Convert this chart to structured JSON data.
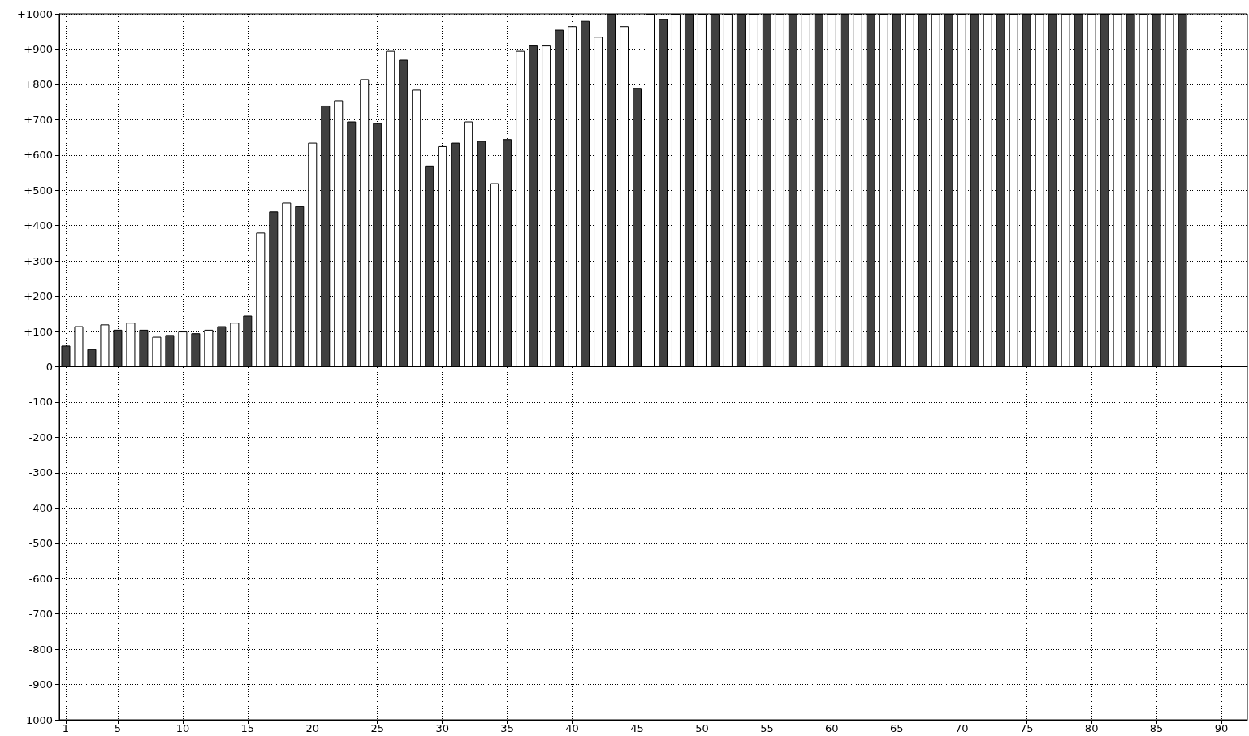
{
  "chart_data": {
    "type": "bar",
    "x": [
      1,
      2,
      3,
      4,
      5,
      6,
      7,
      8,
      9,
      10,
      11,
      12,
      13,
      14,
      15,
      16,
      17,
      18,
      19,
      20,
      21,
      22,
      23,
      24,
      25,
      26,
      27,
      28,
      29,
      30,
      31,
      32,
      33,
      34,
      35,
      36,
      37,
      38,
      39,
      40,
      41,
      42,
      43,
      44,
      45,
      46,
      47,
      48,
      49,
      50,
      51,
      52,
      53,
      54,
      55,
      56,
      57,
      58,
      59,
      60,
      61,
      62,
      63,
      64,
      65,
      66,
      67,
      68,
      69,
      70,
      71,
      72,
      73,
      74,
      75,
      76,
      77,
      78,
      79,
      80,
      81,
      82,
      83,
      84,
      85,
      86,
      87
    ],
    "values": [
      60,
      115,
      50,
      120,
      105,
      125,
      105,
      85,
      90,
      100,
      95,
      105,
      115,
      125,
      145,
      380,
      440,
      465,
      455,
      635,
      740,
      755,
      695,
      815,
      690,
      895,
      870,
      785,
      570,
      625,
      635,
      695,
      640,
      520,
      645,
      895,
      910,
      910,
      955,
      965,
      980,
      935,
      1000,
      965,
      790,
      1000,
      985,
      1000,
      1000,
      1000,
      1000,
      1000,
      1000,
      1000,
      1000,
      1000,
      1000,
      1000,
      1000,
      1000,
      1000,
      1000,
      1000,
      1000,
      1000,
      1000,
      1000,
      1000,
      1000,
      1000,
      1000,
      1000,
      1000,
      1000,
      1000,
      1000,
      1000,
      1000,
      1000,
      1000,
      1000,
      1000,
      1000,
      1000,
      1000,
      1000,
      1000
    ],
    "colors": [
      "#404040",
      "#ffffff",
      "#404040",
      "#ffffff",
      "#404040",
      "#ffffff",
      "#404040",
      "#ffffff",
      "#404040",
      "#ffffff",
      "#404040",
      "#ffffff",
      "#404040",
      "#ffffff",
      "#404040",
      "#ffffff",
      "#404040",
      "#ffffff",
      "#404040",
      "#ffffff",
      "#404040",
      "#ffffff",
      "#404040",
      "#ffffff",
      "#404040",
      "#ffffff",
      "#404040",
      "#ffffff",
      "#404040",
      "#ffffff",
      "#404040",
      "#ffffff",
      "#404040",
      "#ffffff",
      "#404040",
      "#ffffff",
      "#404040",
      "#ffffff",
      "#404040",
      "#ffffff",
      "#404040",
      "#ffffff",
      "#404040",
      "#ffffff",
      "#404040",
      "#ffffff",
      "#404040",
      "#ffffff",
      "#404040",
      "#ffffff",
      "#404040",
      "#ffffff",
      "#404040",
      "#ffffff",
      "#404040",
      "#ffffff",
      "#404040",
      "#ffffff",
      "#404040",
      "#ffffff",
      "#404040",
      "#ffffff",
      "#404040",
      "#ffffff",
      "#404040",
      "#ffffff",
      "#404040",
      "#ffffff",
      "#404040",
      "#ffffff",
      "#404040",
      "#ffffff",
      "#404040",
      "#ffffff",
      "#404040",
      "#ffffff",
      "#404040",
      "#ffffff",
      "#404040",
      "#ffffff",
      "#404040",
      "#ffffff",
      "#404040",
      "#ffffff",
      "#404040",
      "#ffffff",
      "#404040"
    ],
    "xlim": [
      0.5,
      92
    ],
    "xticks": [
      1,
      5,
      10,
      15,
      20,
      25,
      30,
      35,
      40,
      45,
      50,
      55,
      60,
      65,
      70,
      75,
      80,
      85,
      90
    ],
    "ylim": [
      -1000,
      1000
    ],
    "yticks": [
      -1000,
      -900,
      -800,
      -700,
      -600,
      -500,
      -400,
      -300,
      -200,
      -100,
      0,
      {
        "value": 100,
        "label": "+100"
      },
      {
        "value": 200,
        "label": "+200"
      },
      {
        "value": 300,
        "label": "+300"
      },
      {
        "value": 400,
        "label": "+400"
      },
      {
        "value": 500,
        "label": "+500"
      },
      {
        "value": 600,
        "label": "+600"
      },
      {
        "value": 700,
        "label": "+700"
      },
      {
        "value": 800,
        "label": "+800"
      },
      {
        "value": 900,
        "label": "+900"
      },
      {
        "value": 1000,
        "label": "+1000"
      }
    ],
    "grid": true
  }
}
